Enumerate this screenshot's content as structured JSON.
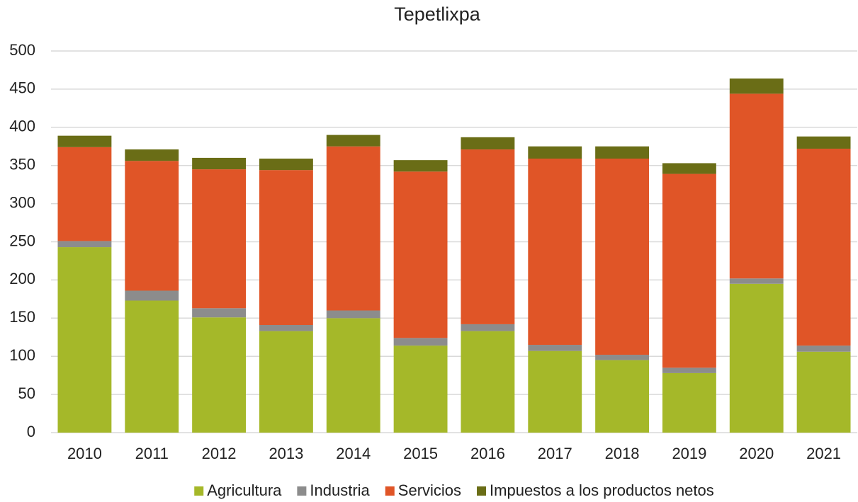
{
  "chart_data": {
    "type": "stacked_bar",
    "title": "Tepetlixpa",
    "categories": [
      "2010",
      "2011",
      "2012",
      "2013",
      "2014",
      "2015",
      "2016",
      "2017",
      "2018",
      "2019",
      "2020",
      "2021"
    ],
    "series": [
      {
        "name": "Agricultura",
        "color": "#a5b829",
        "values": [
          243,
          173,
          151,
          133,
          150,
          114,
          133,
          107,
          95,
          78,
          195,
          106
        ]
      },
      {
        "name": "Industria",
        "color": "#8c8c8c",
        "values": [
          8,
          13,
          12,
          8,
          10,
          10,
          9,
          8,
          7,
          7,
          7,
          8
        ]
      },
      {
        "name": "Servicios",
        "color": "#e05527",
        "values": [
          123,
          170,
          182,
          203,
          215,
          218,
          229,
          244,
          257,
          254,
          242,
          258
        ]
      },
      {
        "name": "Impuestos a los productos netos",
        "color": "#6a6d16",
        "values": [
          15,
          15,
          15,
          15,
          15,
          15,
          16,
          16,
          16,
          14,
          20,
          16
        ]
      }
    ],
    "ylim": [
      0,
      500
    ],
    "yticks": [
      0,
      50,
      100,
      150,
      200,
      250,
      300,
      350,
      400,
      450,
      500
    ],
    "grid": true,
    "legend": "bottom"
  }
}
